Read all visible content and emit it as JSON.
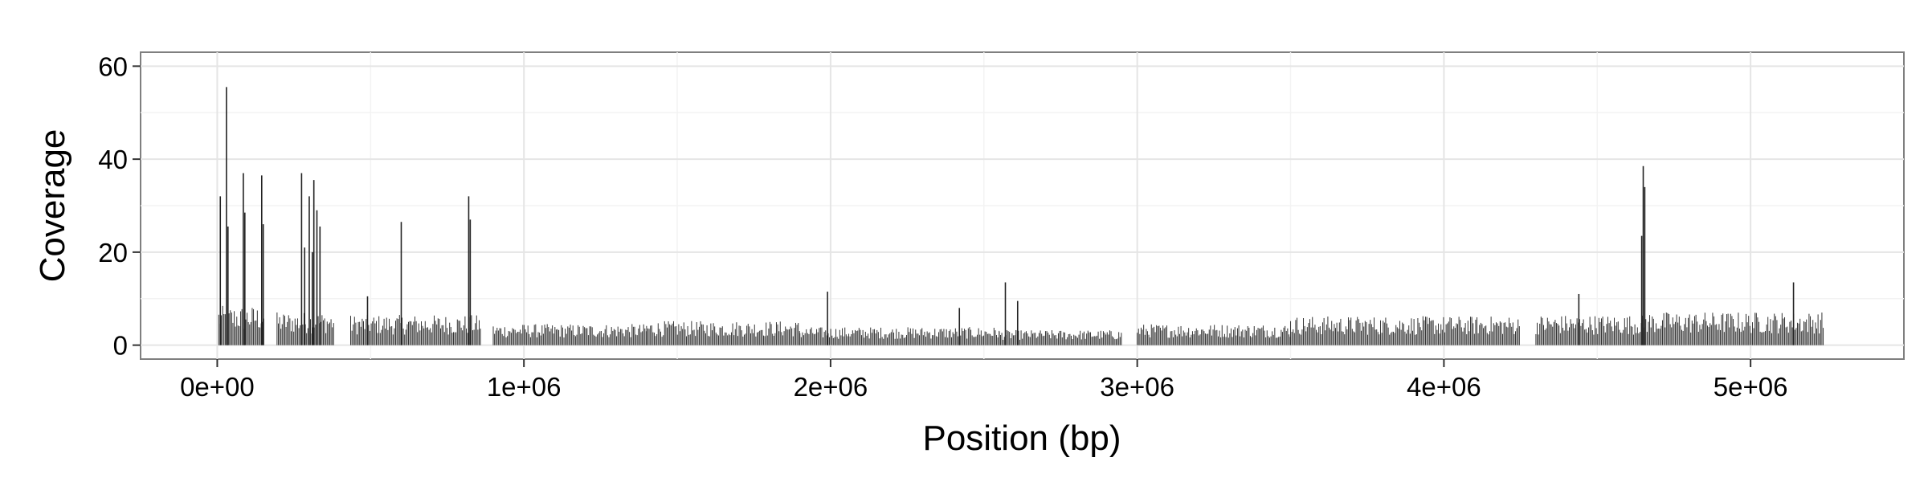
{
  "chart_data": {
    "type": "bar",
    "title": "",
    "xlabel": "Position (bp)",
    "ylabel": "Coverage",
    "xlim": [
      -250000,
      5500000
    ],
    "ylim": [
      -3,
      63
    ],
    "grid": true,
    "legend": "none",
    "x_ticks": [
      {
        "value": 0,
        "label": "0e+00"
      },
      {
        "value": 1000000,
        "label": "1e+06"
      },
      {
        "value": 2000000,
        "label": "2e+06"
      },
      {
        "value": 3000000,
        "label": "3e+06"
      },
      {
        "value": 4000000,
        "label": "4e+06"
      },
      {
        "value": 5000000,
        "label": "5e+06"
      }
    ],
    "y_ticks": [
      {
        "value": 0,
        "label": "0"
      },
      {
        "value": 20,
        "label": "20"
      },
      {
        "value": 40,
        "label": "40"
      },
      {
        "value": 60,
        "label": "60"
      }
    ],
    "baseline_segments": [
      {
        "start": 5000,
        "end": 155000,
        "level": 6.5
      },
      {
        "start": 195000,
        "end": 380000,
        "level": 5.5
      },
      {
        "start": 435000,
        "end": 860000,
        "level": 5.0
      },
      {
        "start": 900000,
        "end": 1400000,
        "level": 3.5
      },
      {
        "start": 1400000,
        "end": 1900000,
        "level": 4.0
      },
      {
        "start": 1900000,
        "end": 2550000,
        "level": 3.0
      },
      {
        "start": 2550000,
        "end": 2950000,
        "level": 2.5
      },
      {
        "start": 3000000,
        "end": 3500000,
        "level": 3.5
      },
      {
        "start": 3500000,
        "end": 4250000,
        "level": 4.8
      },
      {
        "start": 4300000,
        "end": 4650000,
        "level": 5.0
      },
      {
        "start": 4650000,
        "end": 5240000,
        "level": 5.5
      }
    ],
    "peaks": [
      {
        "x": 10000,
        "y": 32
      },
      {
        "x": 30000,
        "y": 55.5
      },
      {
        "x": 35000,
        "y": 25.5
      },
      {
        "x": 85000,
        "y": 37
      },
      {
        "x": 90000,
        "y": 28.5
      },
      {
        "x": 145000,
        "y": 36.5
      },
      {
        "x": 150000,
        "y": 26
      },
      {
        "x": 275000,
        "y": 37
      },
      {
        "x": 285000,
        "y": 21
      },
      {
        "x": 300000,
        "y": 32
      },
      {
        "x": 310000,
        "y": 20
      },
      {
        "x": 315000,
        "y": 35.5
      },
      {
        "x": 325000,
        "y": 29
      },
      {
        "x": 335000,
        "y": 25.5
      },
      {
        "x": 600000,
        "y": 26.5
      },
      {
        "x": 820000,
        "y": 32
      },
      {
        "x": 825000,
        "y": 27
      },
      {
        "x": 490000,
        "y": 10.5
      },
      {
        "x": 1990000,
        "y": 11.5
      },
      {
        "x": 2420000,
        "y": 8
      },
      {
        "x": 2570000,
        "y": 13.5
      },
      {
        "x": 2610000,
        "y": 9.5
      },
      {
        "x": 4440000,
        "y": 11
      },
      {
        "x": 4650000,
        "y": 38.5
      },
      {
        "x": 4655000,
        "y": 34
      },
      {
        "x": 4645000,
        "y": 23.5
      },
      {
        "x": 5140000,
        "y": 13.5
      }
    ]
  }
}
